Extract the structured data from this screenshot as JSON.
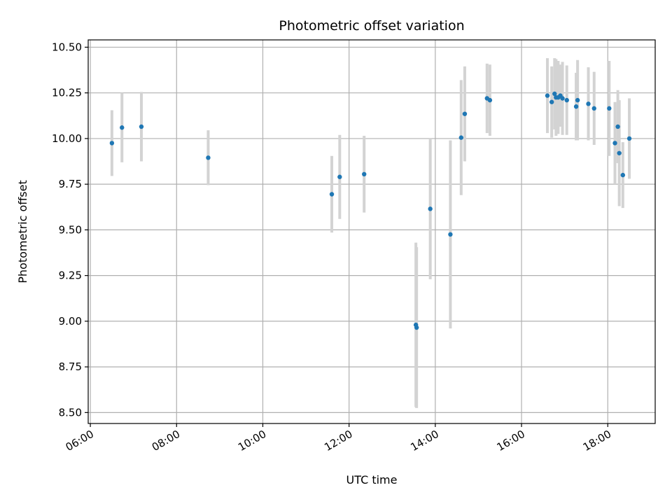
{
  "chart_data": {
    "type": "scatter",
    "title": "Photometric offset variation",
    "xlabel": "UTC time",
    "ylabel": "Photometric offset",
    "x_tick_labels": [
      "06:00",
      "08:00",
      "10:00",
      "12:00",
      "14:00",
      "16:00",
      "18:00"
    ],
    "x_ticks_hours": [
      6,
      8,
      10,
      12,
      14,
      16,
      18
    ],
    "y_ticks": [
      8.5,
      8.75,
      9.0,
      9.25,
      9.5,
      9.75,
      10.0,
      10.25,
      10.5
    ],
    "y_tick_labels": [
      "8.50",
      "8.75",
      "9.00",
      "9.25",
      "9.50",
      "9.75",
      "10.00",
      "10.25",
      "10.50"
    ],
    "xlim_hours": [
      5.95,
      19.1
    ],
    "ylim": [
      8.44,
      10.54
    ],
    "grid": true,
    "point_color": "#1f77b4",
    "errorbar_color": "#d3d3d3",
    "series": [
      {
        "points": [
          {
            "x": "06:30",
            "y": 9.975,
            "err": 0.18
          },
          {
            "x": "06:44",
            "y": 10.06,
            "err": 0.19
          },
          {
            "x": "07:11",
            "y": 10.065,
            "err": 0.19
          },
          {
            "x": "08:44",
            "y": 9.895,
            "err": 0.15
          },
          {
            "x": "11:36",
            "y": 9.695,
            "err": 0.21
          },
          {
            "x": "11:47",
            "y": 9.79,
            "err": 0.23
          },
          {
            "x": "12:21",
            "y": 9.805,
            "err": 0.21
          },
          {
            "x": "13:33",
            "y": 8.98,
            "err": 0.45
          },
          {
            "x": "13:34",
            "y": 8.965,
            "err": 0.44
          },
          {
            "x": "13:53",
            "y": 9.615,
            "err": 0.385
          },
          {
            "x": "14:21",
            "y": 9.475,
            "err": 0.515
          },
          {
            "x": "14:36",
            "y": 10.005,
            "err": 0.315
          },
          {
            "x": "14:41",
            "y": 10.135,
            "err": 0.26
          },
          {
            "x": "15:12",
            "y": 10.22,
            "err": 0.19
          },
          {
            "x": "15:16",
            "y": 10.21,
            "err": 0.195
          },
          {
            "x": "16:36",
            "y": 10.235,
            "err": 0.205
          },
          {
            "x": "16:42",
            "y": 10.2,
            "err": 0.195
          },
          {
            "x": "16:46",
            "y": 10.245,
            "err": 0.195
          },
          {
            "x": "16:48",
            "y": 10.225,
            "err": 0.21
          },
          {
            "x": "16:51",
            "y": 10.225,
            "err": 0.2
          },
          {
            "x": "16:54",
            "y": 10.235,
            "err": 0.17
          },
          {
            "x": "16:57",
            "y": 10.22,
            "err": 0.2
          },
          {
            "x": "17:03",
            "y": 10.21,
            "err": 0.19
          },
          {
            "x": "17:16",
            "y": 10.175,
            "err": 0.185
          },
          {
            "x": "17:18",
            "y": 10.21,
            "err": 0.22
          },
          {
            "x": "17:33",
            "y": 10.19,
            "err": 0.2
          },
          {
            "x": "17:41",
            "y": 10.165,
            "err": 0.2
          },
          {
            "x": "18:02",
            "y": 10.165,
            "err": 0.26
          },
          {
            "x": "18:10",
            "y": 9.975,
            "err": 0.225
          },
          {
            "x": "18:14",
            "y": 10.065,
            "err": 0.2
          },
          {
            "x": "18:16",
            "y": 9.92,
            "err": 0.29
          },
          {
            "x": "18:21",
            "y": 9.8,
            "err": 0.18
          },
          {
            "x": "18:30",
            "y": 10.0,
            "err": 0.22
          }
        ]
      }
    ]
  }
}
